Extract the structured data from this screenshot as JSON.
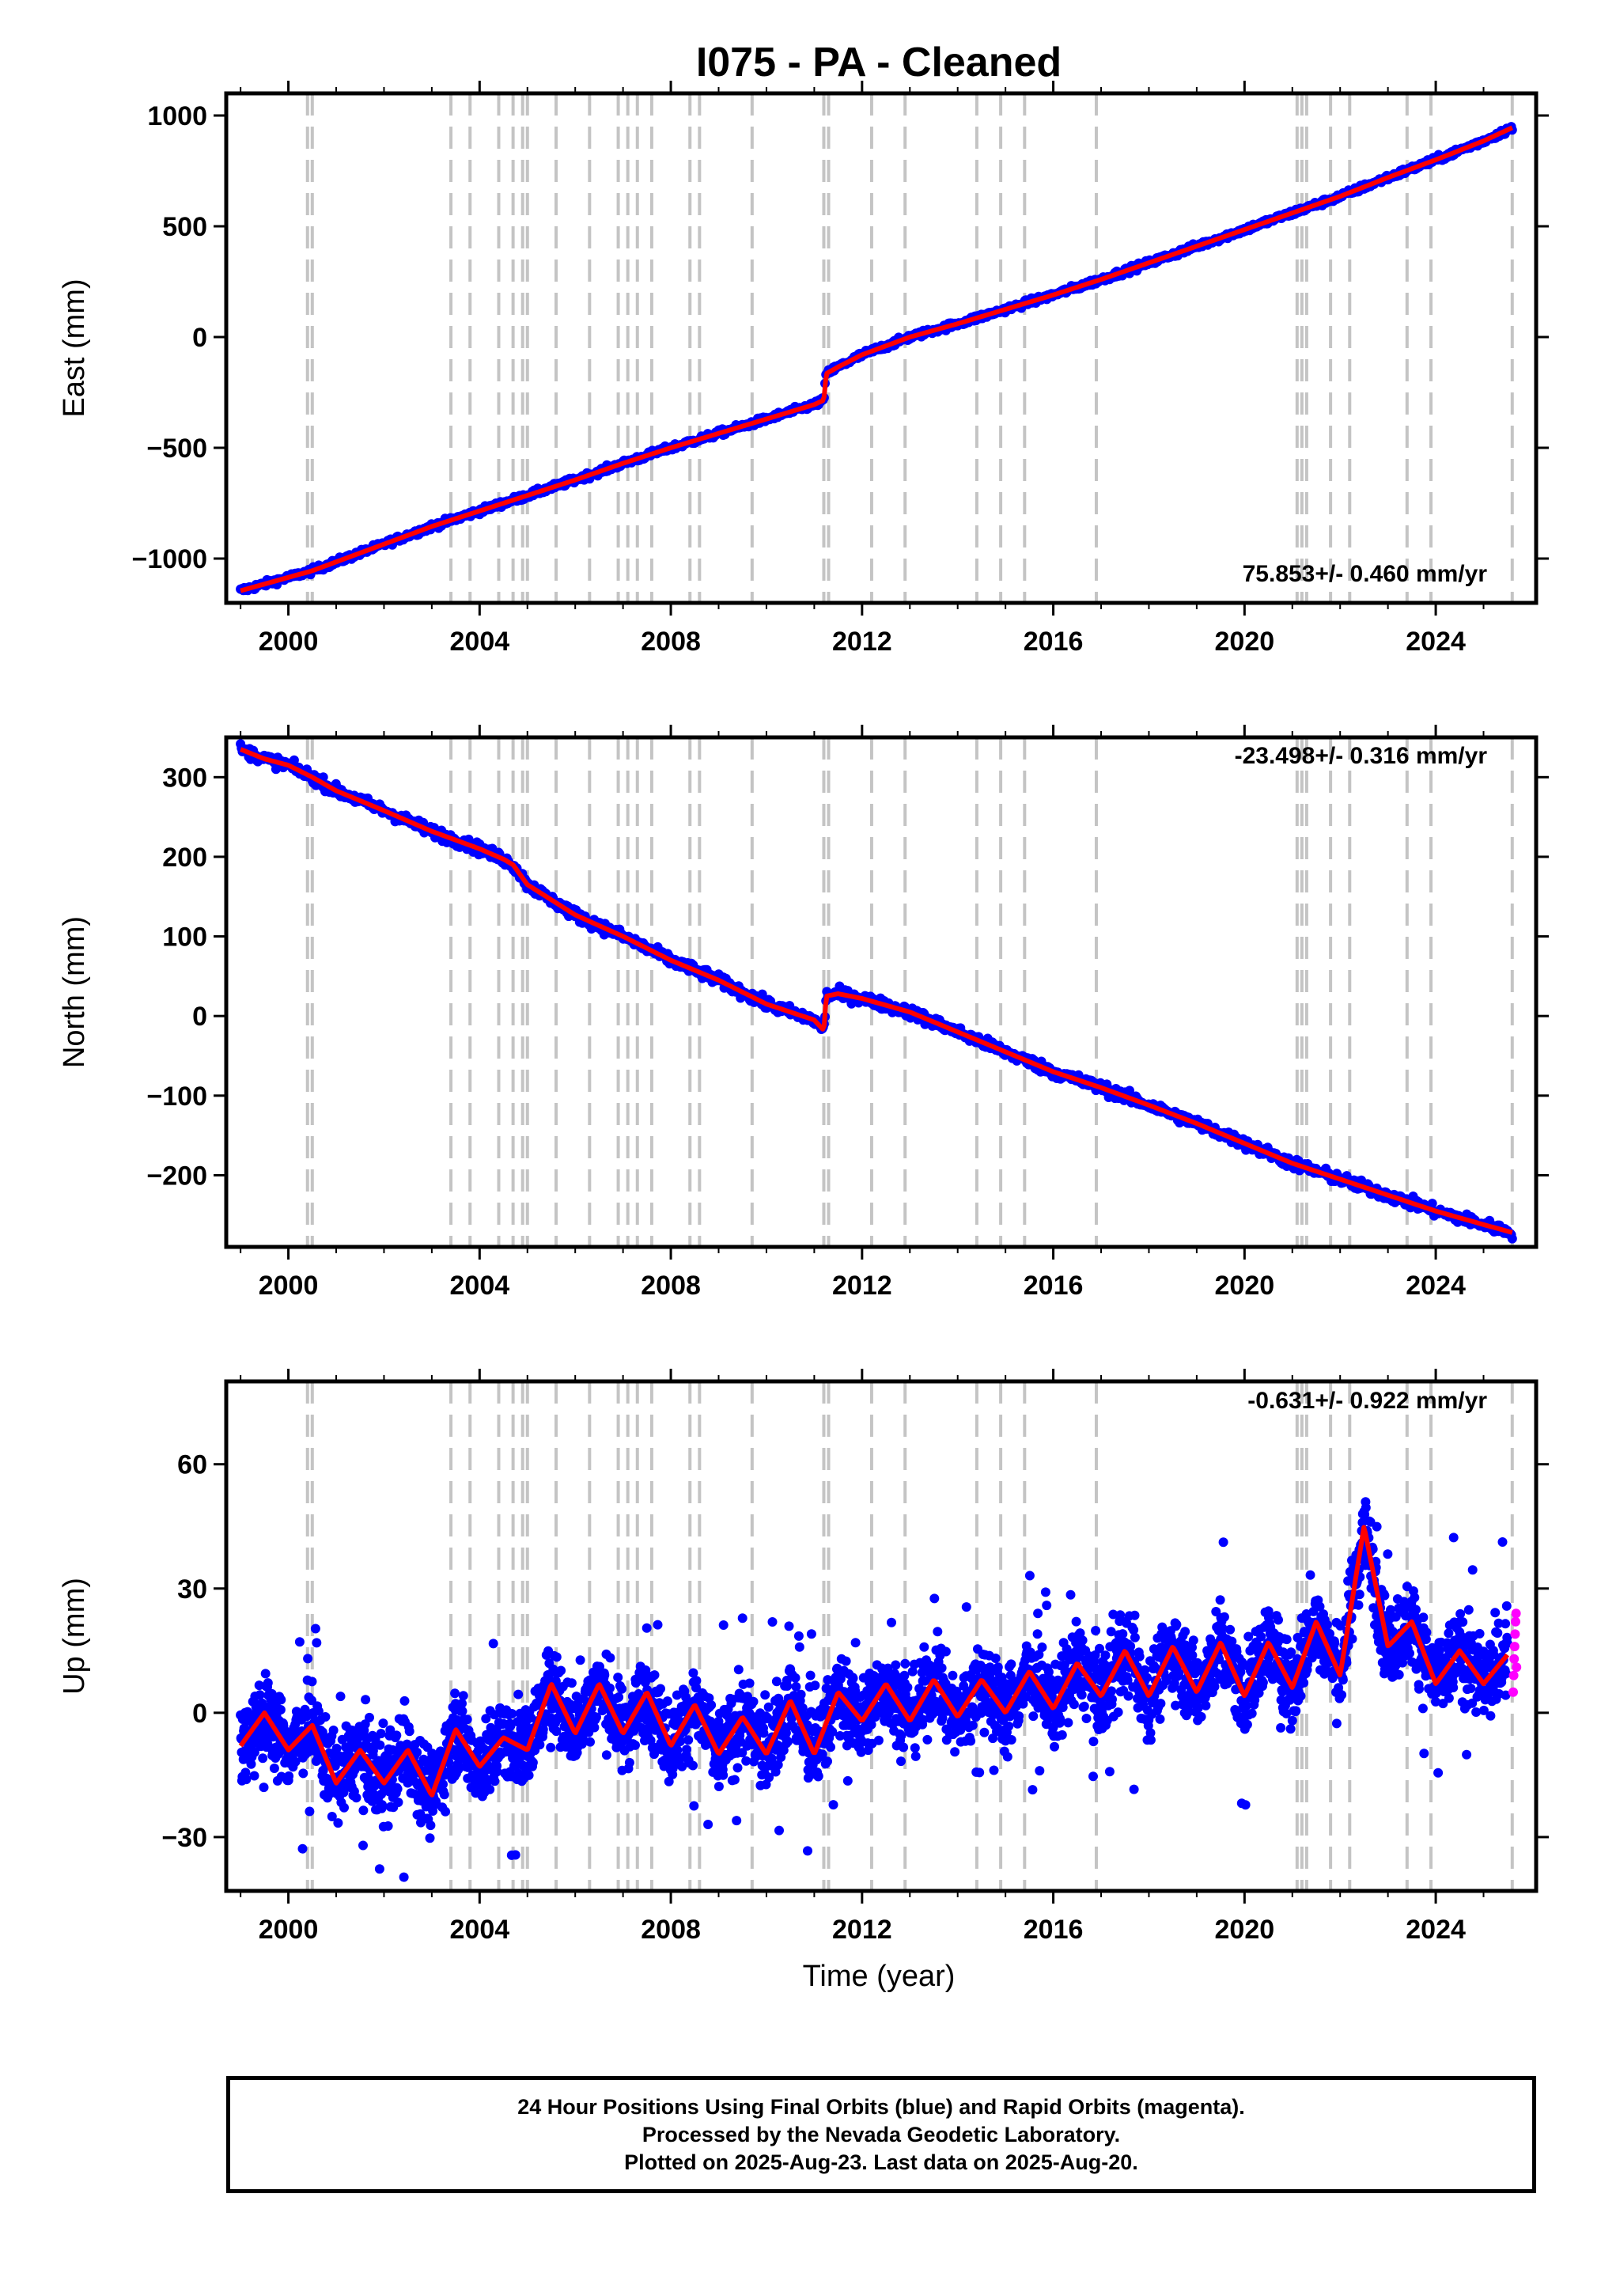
{
  "title": "I075  - PA - Cleaned",
  "xlabel": "Time (year)",
  "colors": {
    "final": "#0000ff",
    "rapid": "#ff00ff",
    "model": "#ff0000",
    "event": "#c4c4c4"
  },
  "footer": {
    "line1": "24 Hour Positions Using Final Orbits (blue) and Rapid Orbits (magenta).",
    "line2": "Processed by the Nevada Geodetic Laboratory.",
    "line3": "Plotted on 2025-Aug-23. Last data on 2025-Aug-20."
  },
  "chart_data": [
    {
      "type": "scatter",
      "title": "I075  - PA - Cleaned",
      "ylabel": "East (mm)",
      "xlim": [
        1998.7,
        2026.1
      ],
      "ylim": [
        -1200,
        1100
      ],
      "xticks": [
        2000,
        2004,
        2008,
        2012,
        2016,
        2020,
        2024
      ],
      "yticks": [
        -1000,
        -500,
        0,
        500,
        1000
      ],
      "annotation": "75.853+/- 0.460 mm/yr",
      "events": [
        2000.4,
        2000.5,
        2003.4,
        2003.8,
        2004.4,
        2004.7,
        2004.9,
        2005.0,
        2005.6,
        2006.3,
        2006.9,
        2007.1,
        2007.3,
        2007.6,
        2008.4,
        2008.6,
        2009.7,
        2011.2,
        2011.3,
        2012.2,
        2012.9,
        2014.4,
        2014.9,
        2015.4,
        2016.9,
        2021.1,
        2021.2,
        2021.3,
        2021.8,
        2022.2,
        2023.4,
        2023.9,
        2025.6
      ],
      "series": [
        {
          "role": "final",
          "x": [
            1999.0,
            2000.0,
            2000.5,
            2001.0,
            2002.0,
            2003.0,
            2004.0,
            2005.0,
            2006.0,
            2007.0,
            2008.0,
            2009.0,
            2010.0,
            2011.0,
            2011.2,
            2011.25,
            2011.5,
            2012.0,
            2013.0,
            2014.0,
            2015.0,
            2016.0,
            2017.0,
            2018.0,
            2019.0,
            2020.0,
            2021.0,
            2022.0,
            2023.0,
            2024.0,
            2025.0,
            2025.6
          ],
          "y": [
            -1145,
            -1085,
            -1055,
            -1015,
            -935,
            -855,
            -785,
            -715,
            -645,
            -570,
            -500,
            -435,
            -370,
            -305,
            -285,
            -165,
            -135,
            -80,
            0,
            60,
            125,
            190,
            260,
            335,
            410,
            485,
            560,
            635,
            720,
            800,
            885,
            945
          ]
        }
      ]
    },
    {
      "type": "scatter",
      "ylabel": "North (mm)",
      "xlim": [
        1998.7,
        2026.1
      ],
      "ylim": [
        -290,
        350
      ],
      "xticks": [
        2000,
        2004,
        2008,
        2012,
        2016,
        2020,
        2024
      ],
      "yticks": [
        -200,
        -100,
        0,
        100,
        200,
        300
      ],
      "annotation": "-23.498+/- 0.316 mm/yr",
      "events": [
        2000.4,
        2000.5,
        2003.4,
        2003.8,
        2004.4,
        2004.7,
        2004.9,
        2005.0,
        2005.6,
        2006.3,
        2006.9,
        2007.1,
        2007.3,
        2007.6,
        2008.4,
        2008.6,
        2009.7,
        2011.2,
        2011.3,
        2012.2,
        2012.9,
        2014.4,
        2014.9,
        2015.4,
        2016.9,
        2021.1,
        2021.2,
        2021.3,
        2021.8,
        2022.2,
        2023.4,
        2023.9,
        2025.6
      ],
      "series": [
        {
          "role": "final",
          "x": [
            1999.0,
            1999.5,
            2000.0,
            2000.5,
            2001.0,
            2002.0,
            2003.0,
            2004.0,
            2004.5,
            2004.7,
            2005.0,
            2006.0,
            2007.0,
            2008.0,
            2009.0,
            2010.0,
            2011.0,
            2011.2,
            2011.25,
            2011.5,
            2012.0,
            2013.0,
            2014.0,
            2015.0,
            2016.0,
            2017.0,
            2018.0,
            2019.0,
            2020.0,
            2021.0,
            2022.0,
            2023.0,
            2024.0,
            2025.0,
            2025.6
          ],
          "y": [
            335,
            323,
            315,
            300,
            283,
            258,
            232,
            210,
            197,
            190,
            165,
            127,
            100,
            70,
            45,
            15,
            -5,
            -18,
            25,
            28,
            22,
            5,
            -20,
            -45,
            -70,
            -90,
            -112,
            -135,
            -160,
            -185,
            -205,
            -225,
            -245,
            -262,
            -272
          ]
        }
      ]
    },
    {
      "type": "scatter",
      "ylabel": "Up (mm)",
      "xlim": [
        1998.7,
        2026.1
      ],
      "ylim": [
        -43,
        80
      ],
      "xticks": [
        2000,
        2004,
        2008,
        2012,
        2016,
        2020,
        2024
      ],
      "yticks": [
        -30,
        0,
        30,
        60
      ],
      "annotation": "-0.631+/- 0.922 mm/yr",
      "events": [
        2000.4,
        2000.5,
        2003.4,
        2003.8,
        2004.4,
        2004.7,
        2004.9,
        2005.0,
        2005.6,
        2006.3,
        2006.9,
        2007.1,
        2007.3,
        2007.6,
        2008.4,
        2008.6,
        2009.7,
        2011.2,
        2011.3,
        2012.2,
        2012.9,
        2014.4,
        2014.9,
        2015.4,
        2016.9,
        2021.1,
        2021.2,
        2021.3,
        2021.8,
        2022.2,
        2023.4,
        2023.9,
        2025.6
      ],
      "series": [
        {
          "role": "final",
          "x": [
            1999.0,
            1999.5,
            2000.0,
            2000.5,
            2001.0,
            2001.5,
            2002.0,
            2002.5,
            2003.0,
            2003.5,
            2004.0,
            2004.5,
            2005.0,
            2005.5,
            2006.0,
            2006.5,
            2007.0,
            2007.5,
            2008.0,
            2008.5,
            2009.0,
            2009.5,
            2010.0,
            2010.5,
            2011.0,
            2011.5,
            2012.0,
            2012.5,
            2013.0,
            2013.5,
            2014.0,
            2014.5,
            2015.0,
            2015.5,
            2016.0,
            2016.5,
            2017.0,
            2017.5,
            2018.0,
            2018.5,
            2019.0,
            2019.5,
            2020.0,
            2020.5,
            2021.0,
            2021.5,
            2022.0,
            2022.5,
            2023.0,
            2023.5,
            2024.0,
            2024.5,
            2025.0,
            2025.5
          ],
          "y": [
            -8,
            0,
            -9,
            -3,
            -17,
            -9,
            -17,
            -9,
            -20,
            -4,
            -13,
            -6,
            -9,
            7,
            -5,
            7,
            -5,
            5,
            -8,
            2,
            -10,
            -1,
            -10,
            3,
            -10,
            5,
            -2,
            7,
            -2,
            8,
            -1,
            8,
            0,
            10,
            1,
            12,
            4,
            15,
            4,
            16,
            5,
            17,
            4,
            17,
            6,
            22,
            9,
            45,
            16,
            22,
            7,
            15,
            7,
            14
          ]
        },
        {
          "role": "rapid",
          "x": [
            2025.62,
            2025.63,
            2025.64,
            2025.65,
            2025.66,
            2025.67,
            2025.68,
            2025.69
          ],
          "y": [
            5,
            9,
            13,
            16,
            19,
            22,
            24,
            11
          ]
        }
      ]
    }
  ]
}
